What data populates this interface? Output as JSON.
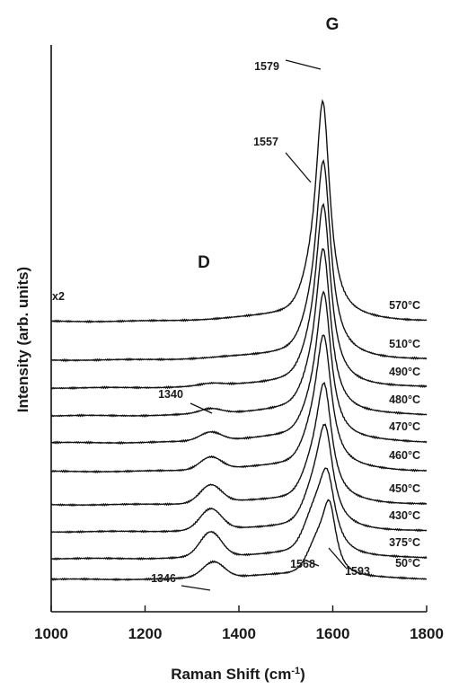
{
  "chart_data": {
    "type": "line",
    "title": "",
    "xlabel": "Raman Shift (cm",
    "xlabel_sup": "-1",
    "xlabel_end": ")",
    "ylabel": "Intensity (arb. units)",
    "xlim": [
      1000,
      1800
    ],
    "x_ticks": [
      "1000",
      "1200",
      "1400",
      "1600",
      "1800"
    ],
    "grid": false,
    "stacked_offset": true,
    "peak_labels": [
      {
        "text": "D",
        "x": 1340
      },
      {
        "text": "G",
        "x": 1580
      }
    ],
    "multiplier_label": "x2",
    "series": [
      {
        "name": "50°C",
        "d_pos": 1346,
        "d_amp": 0.4,
        "g_pos": 1593,
        "g_amp": 1.6,
        "g_width": 18,
        "shoulder_pos": 1568,
        "shoulder_amp": 0.65
      },
      {
        "name": "375°C",
        "d_pos": 1340,
        "d_amp": 0.62,
        "g_pos": 1588,
        "g_amp": 1.9,
        "g_width": 22,
        "shoulder_pos": 1560,
        "shoulder_amp": 0.7
      },
      {
        "name": "430°C",
        "d_pos": 1340,
        "d_amp": 0.52,
        "g_pos": 1584,
        "g_amp": 2.3,
        "g_width": 21,
        "shoulder_pos": 1560,
        "shoulder_amp": 0.6
      },
      {
        "name": "450°C",
        "d_pos": 1340,
        "d_amp": 0.45,
        "g_pos": 1582,
        "g_amp": 2.7,
        "g_width": 20,
        "shoulder_pos": 1558,
        "shoulder_amp": 0.55
      },
      {
        "name": "460°C",
        "d_pos": 1340,
        "d_amp": 0.32,
        "g_pos": 1581,
        "g_amp": 3.1,
        "g_width": 20,
        "shoulder_pos": 1558,
        "shoulder_amp": 0.5
      },
      {
        "name": "470°C",
        "d_pos": 1340,
        "d_amp": 0.22,
        "g_pos": 1581,
        "g_amp": 3.5,
        "g_width": 19,
        "shoulder_pos": 1557,
        "shoulder_amp": 0.45
      },
      {
        "name": "480°C",
        "d_pos": 1340,
        "d_amp": 0.12,
        "g_pos": 1580,
        "g_amp": 3.9,
        "g_width": 19,
        "shoulder_pos": 1557,
        "shoulder_amp": 0.45
      },
      {
        "name": "490°C",
        "d_pos": 1340,
        "d_amp": 0.05,
        "g_pos": 1580,
        "g_amp": 4.3,
        "g_width": 19,
        "shoulder_pos": 1557,
        "shoulder_amp": 0.45
      },
      {
        "name": "510°C",
        "d_pos": 1340,
        "d_amp": 0.0,
        "g_pos": 1580,
        "g_amp": 4.7,
        "g_width": 19,
        "shoulder_pos": 1557,
        "shoulder_amp": 0.45
      },
      {
        "name": "570°C",
        "d_pos": 1340,
        "d_amp": 0.0,
        "g_pos": 1579,
        "g_amp": 5.2,
        "g_width": 18,
        "shoulder_pos": 1557,
        "shoulder_amp": 0.5
      }
    ],
    "annotations": [
      {
        "text": "1579",
        "x": 1579
      },
      {
        "text": "1557",
        "x": 1557
      },
      {
        "text": "1340",
        "x": 1340
      },
      {
        "text": "1346",
        "x": 1346
      },
      {
        "text": "1568",
        "x": 1568
      },
      {
        "text": "1593",
        "x": 1593
      }
    ]
  }
}
